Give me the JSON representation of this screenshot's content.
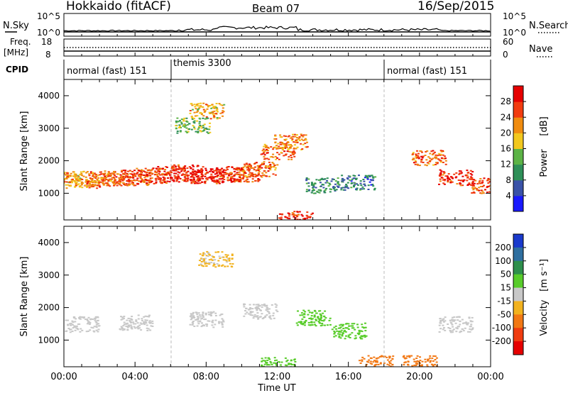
{
  "header": {
    "station": "Hokkaido (fitACF)",
    "beam": "Beam 07",
    "date": "16/Sep/2015"
  },
  "top_panels": {
    "nsky_label": "N.Sky",
    "nsky_ticks": [
      "10^5",
      "10^0"
    ],
    "nsearch_label": "N.Search",
    "nsearch_ticks": [
      "10^5",
      "10^0"
    ],
    "freq_label": "Freq.",
    "freq_unit": "[MHz]",
    "freq_ticks": [
      "18",
      "8"
    ],
    "nave_label": "Nave",
    "nave_ticks": [
      "60",
      "0"
    ],
    "cpid_label": "CPID",
    "cpid_segments": [
      {
        "label": "normal (fast) 151",
        "start": "00:00",
        "end": "06:00"
      },
      {
        "label": "themis 3300",
        "start": "06:00",
        "end": "18:00"
      },
      {
        "label": "normal (fast) 151",
        "start": "18:00",
        "end": "24:00"
      }
    ]
  },
  "colorbars": {
    "power": {
      "title": "Power",
      "unit": "[dB]",
      "ticks": [
        "4",
        "8",
        "12",
        "16",
        "20",
        "24",
        "28"
      ],
      "colors": [
        "#1a1aff",
        "#3a52a8",
        "#2e8f58",
        "#5cb346",
        "#f2c81e",
        "#f08c10",
        "#f23c10",
        "#e60000"
      ]
    },
    "velocity": {
      "title": "Velocity",
      "unit": "[m s⁻¹]",
      "ticks": [
        "200",
        "100",
        "50",
        "15",
        "-15",
        "-50",
        "-100",
        "-200"
      ],
      "colors": [
        "#1a3acc",
        "#2f6fa0",
        "#2e8f4c",
        "#58cc2a",
        "#c8c8c8",
        "#f2b21e",
        "#f27814",
        "#f03c10",
        "#e60000"
      ]
    }
  },
  "chart_data": [
    {
      "type": "heatmap",
      "title": "",
      "xlabel": "",
      "ylabel": "Slant Range [km]",
      "xlim": [
        0,
        24
      ],
      "ylim": [
        180,
        4500
      ],
      "x_ticks": [
        "00:00",
        "04:00",
        "08:00",
        "12:00",
        "16:00",
        "20:00",
        "00:00"
      ],
      "y_ticks": [
        "1000",
        "2000",
        "3000",
        "4000"
      ],
      "colorbar": "Power [dB]",
      "series": [
        {
          "name": "",
          "points": [
            {
              "t": 0.0,
              "range": 1450,
              "power": 20
            },
            {
              "t": 1.0,
              "range": 1400,
              "power": 22
            },
            {
              "t": 2.0,
              "range": 1450,
              "power": 24
            },
            {
              "t": 3.0,
              "range": 1480,
              "power": 24
            },
            {
              "t": 4.0,
              "range": 1500,
              "power": 26
            },
            {
              "t": 5.0,
              "range": 1550,
              "power": 26
            },
            {
              "t": 6.0,
              "range": 1600,
              "power": 28
            },
            {
              "t": 7.0,
              "range": 1650,
              "power": 28
            },
            {
              "t": 8.0,
              "range": 1550,
              "power": 28
            },
            {
              "t": 9.0,
              "range": 1600,
              "power": 28
            },
            {
              "t": 10.0,
              "range": 1600,
              "power": 26
            },
            {
              "t": 11.0,
              "range": 1750,
              "power": 24
            },
            {
              "t": 12.0,
              "range": 2300,
              "power": 24
            },
            {
              "t": 12.7,
              "range": 2600,
              "power": 22
            },
            {
              "t": 8.0,
              "range": 3550,
              "power": 20
            },
            {
              "t": 7.2,
              "range": 3100,
              "power": 14
            },
            {
              "t": 14.5,
              "range": 1250,
              "power": 10
            },
            {
              "t": 16.5,
              "range": 1350,
              "power": 8
            },
            {
              "t": 20.5,
              "range": 2100,
              "power": 24
            },
            {
              "t": 22.0,
              "range": 1500,
              "power": 28
            },
            {
              "t": 23.8,
              "range": 1250,
              "power": 26
            },
            {
              "t": 13.0,
              "range": 230,
              "power": 28
            }
          ]
        }
      ]
    },
    {
      "type": "heatmap",
      "title": "",
      "xlabel": "Time UT",
      "ylabel": "Slant Range [km]",
      "xlim": [
        0,
        24
      ],
      "ylim": [
        180,
        4500
      ],
      "x_ticks": [
        "00:00",
        "04:00",
        "08:00",
        "12:00",
        "16:00",
        "20:00",
        "00:00"
      ],
      "y_ticks": [
        "1000",
        "2000",
        "3000",
        "4000"
      ],
      "colorbar": "Velocity [m s⁻¹]",
      "series": [
        {
          "name": "",
          "points": [
            {
              "t": 1.0,
              "range": 1500,
              "velocity": 0
            },
            {
              "t": 4.0,
              "range": 1550,
              "velocity": 0
            },
            {
              "t": 8.0,
              "range": 1650,
              "velocity": 0
            },
            {
              "t": 11.0,
              "range": 1900,
              "velocity": 0
            },
            {
              "t": 8.5,
              "range": 3500,
              "velocity": -20
            },
            {
              "t": 14.0,
              "range": 1700,
              "velocity": 40
            },
            {
              "t": 16.0,
              "range": 1300,
              "velocity": 40
            },
            {
              "t": 17.5,
              "range": 300,
              "velocity": -60
            },
            {
              "t": 20.0,
              "range": 300,
              "velocity": -80
            },
            {
              "t": 22.0,
              "range": 1500,
              "velocity": 0
            },
            {
              "t": 12.0,
              "range": 250,
              "velocity": 40
            }
          ]
        }
      ]
    }
  ]
}
